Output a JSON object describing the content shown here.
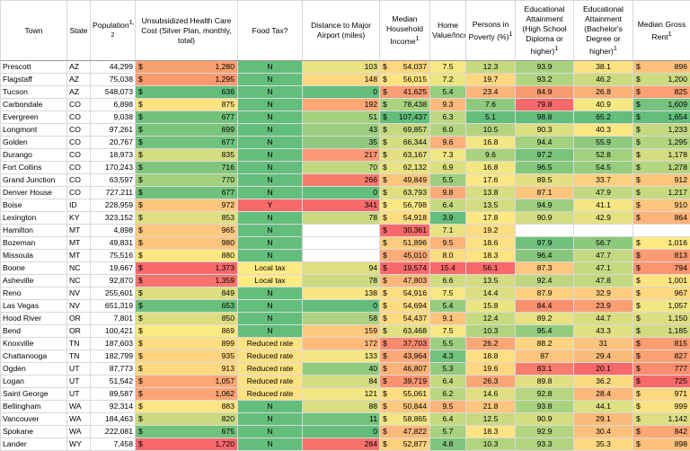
{
  "headers": {
    "town": "Town",
    "state": "State",
    "population": "Population",
    "population_sup": "1, 2",
    "health": "Unsubsidized Health Care Cost (Silver Plan, monthly, total)",
    "foodtax": "Food Tax?",
    "airport": "Distance to Major Airport (miles)",
    "income": "Median Household Income",
    "income_sup": "1",
    "homeval": "Home Value/Income",
    "poverty": "Persons in Poverty (%)",
    "poverty_sup": "1",
    "edu_hs": "Educational Attainment (High School Diploma or higher)",
    "edu_hs_sup": "1",
    "edu_ba": "Educational Attainment (Bachelor's Degree or higher)",
    "edu_ba_sup": "1",
    "rent": "Median Gross Rent",
    "rent_sup": "1"
  },
  "currency_symbol": "$",
  "rows": [
    {
      "town": "Prescott",
      "state": "AZ",
      "pop": "44,299",
      "health": "1,280",
      "health_c": "#f9a06f",
      "food": "N",
      "food_c": "#63be7b",
      "air": "103",
      "air_c": "#e9e282",
      "inc": "54,037",
      "inc_c": "#fed780",
      "hv": "7.5",
      "hv_c": "#f7e883",
      "pov": "12.3",
      "pov_c": "#c7d980",
      "hs": "93.9",
      "hs_c": "#a9d27f",
      "ba": "38.1",
      "ba_c": "#ffe383",
      "rent": "896",
      "rent_c": "#fdc17c"
    },
    {
      "town": "Flagstaff",
      "state": "AZ",
      "pop": "75,038",
      "health": "1,295",
      "health_c": "#f99a6e",
      "food": "N",
      "food_c": "#63be7b",
      "air": "148",
      "air_c": "#fed780",
      "inc": "56,015",
      "inc_c": "#ffe383",
      "hv": "7.2",
      "hv_c": "#ebe582",
      "pov": "19.7",
      "pov_c": "#fed780",
      "hs": "93.2",
      "hs_c": "#b1d47f",
      "ba": "46.2",
      "ba_c": "#cddb80",
      "rent": "1,200",
      "rent_c": "#cddb80"
    },
    {
      "town": "Tucson",
      "state": "AZ",
      "pop": "548,073",
      "health": "636",
      "health_c": "#63be7b",
      "food": "N",
      "food_c": "#63be7b",
      "air": "0",
      "air_c": "#63be7b",
      "inc": "41,625",
      "inc_c": "#fa9e73",
      "hv": "5.4",
      "hv_c": "#98cd7e",
      "pov": "23.4",
      "pov_c": "#fcb67a",
      "hs": "84.9",
      "hs_c": "#f99b70",
      "ba": "26.8",
      "ba_c": "#fab178",
      "rent": "825",
      "rent_c": "#fba072"
    },
    {
      "town": "Carbondale",
      "state": "CO",
      "pop": "6,898",
      "health": "875",
      "health_c": "#ffe383",
      "food": "N",
      "food_c": "#63be7b",
      "air": "192",
      "air_c": "#fca874",
      "inc": "78,438",
      "inc_c": "#aad380",
      "hv": "9.3",
      "hv_c": "#fcbb7b",
      "pov": "7.6",
      "pov_c": "#8fc97d",
      "hs": "79.8",
      "hs_c": "#f8696b",
      "ba": "40.9",
      "ba_c": "#f6e883",
      "rent": "1,609",
      "rent_c": "#75c37c"
    },
    {
      "town": "Evergreen",
      "state": "CO",
      "pop": "9,038",
      "health": "677",
      "health_c": "#71c27c",
      "food": "N",
      "food_c": "#63be7b",
      "air": "51",
      "air_c": "#a3d17f",
      "inc": "107,437",
      "inc_c": "#63be7b",
      "hv": "6.3",
      "hv_c": "#c0d781",
      "pov": "5.1",
      "pov_c": "#63be7b",
      "hs": "98.8",
      "hs_c": "#63be7b",
      "ba": "65.2",
      "ba_c": "#63be7b",
      "rent": "1,654",
      "rent_c": "#63be7b"
    },
    {
      "town": "Longmont",
      "state": "CO",
      "pop": "97,261",
      "health": "699",
      "health_c": "#7ac47c",
      "food": "N",
      "food_c": "#63be7b",
      "air": "43",
      "air_c": "#99ce7e",
      "inc": "69,857",
      "inc_c": "#c6d981",
      "hv": "6.0",
      "hv_c": "#b2d47f",
      "pov": "10.5",
      "pov_c": "#b4d47f",
      "hs": "90.3",
      "hs_c": "#dbde81",
      "ba": "40.3",
      "ba_c": "#fbe883",
      "rent": "1,233",
      "rent_c": "#c4d981"
    },
    {
      "town": "Golden",
      "state": "CO",
      "pop": "20,767",
      "health": "677",
      "health_c": "#71c27c",
      "food": "N",
      "food_c": "#63be7b",
      "air": "35",
      "air_c": "#8fc97d",
      "inc": "66,344",
      "inc_c": "#d6dc81",
      "hv": "9.6",
      "hv_c": "#fcb17a",
      "pov": "16.8",
      "pov_c": "#f3e783",
      "hs": "94.4",
      "hs_c": "#a3d17f",
      "ba": "55.9",
      "ba_c": "#90ca7e",
      "rent": "1,295",
      "rent_c": "#b1d47f"
    },
    {
      "town": "Durango",
      "state": "CO",
      "pop": "18,973",
      "health": "835",
      "health_c": "#d3dd81",
      "food": "N",
      "food_c": "#63be7b",
      "air": "217",
      "air_c": "#fb9874",
      "inc": "63,167",
      "inc_c": "#e4e082",
      "hv": "7.3",
      "hv_c": "#f0e683",
      "pov": "9.6",
      "pov_c": "#aad180",
      "hs": "97.2",
      "hs_c": "#79c47c",
      "ba": "52.8",
      "ba_c": "#a3d17f",
      "rent": "1,178",
      "rent_c": "#d4dc81"
    },
    {
      "town": "Fort Collins",
      "state": "CO",
      "pop": "170,243",
      "health": "716",
      "health_c": "#82c67d",
      "food": "N",
      "food_c": "#63be7b",
      "air": "70",
      "air_c": "#c1d881",
      "inc": "62,132",
      "inc_c": "#e9e282",
      "hv": "6.9",
      "hv_c": "#dde081",
      "pov": "16.8",
      "pov_c": "#f3e783",
      "hs": "96.5",
      "hs_c": "#84c77d",
      "ba": "54.5",
      "ba_c": "#98cd7e",
      "rent": "1,278",
      "rent_c": "#b6d57f"
    },
    {
      "town": "Grand Junction",
      "state": "CO",
      "pop": "63,597",
      "health": "770",
      "health_c": "#a2d17f",
      "food": "N",
      "food_c": "#63be7b",
      "air": "266",
      "air_c": "#f87a6d",
      "inc": "49,849",
      "inc_c": "#fec57d",
      "hv": "5.5",
      "hv_c": "#9ecf7f",
      "pov": "17.6",
      "pov_c": "#fbe783",
      "hs": "89.5",
      "hs_c": "#e4e082",
      "ba": "33.7",
      "ba_c": "#fdd17f",
      "rent": "912",
      "rent_c": "#fdc67d"
    },
    {
      "town": "Denver House",
      "state": "CO",
      "pop": "727,211",
      "health": "677",
      "health_c": "#71c27c",
      "food": "N",
      "food_c": "#63be7b",
      "air": "0",
      "air_c": "#63be7b",
      "inc": "63,793",
      "inc_c": "#e1df82",
      "hv": "9.8",
      "hv_c": "#fbaa78",
      "pov": "13.8",
      "pov_c": "#d7dd81",
      "hs": "87.1",
      "hs_c": "#fcc57d",
      "ba": "47.9",
      "ba_c": "#c2d981",
      "rent": "1,217",
      "rent_c": "#c8da80"
    },
    {
      "town": "Boise",
      "state": "ID",
      "pop": "228,959",
      "health": "972",
      "health_c": "#fec67d",
      "food": "Y",
      "food_c": "#f8696b",
      "air": "341",
      "air_c": "#f8696b",
      "inc": "56,798",
      "inc_c": "#fbe883",
      "hv": "6.4",
      "hv_c": "#c6d981",
      "pov": "13.5",
      "pov_c": "#d4dc81",
      "hs": "94.9",
      "hs_c": "#9bce7e",
      "ba": "41.1",
      "ba_c": "#f4e783",
      "rent": "910",
      "rent_c": "#fdc57d"
    },
    {
      "town": "Lexington",
      "state": "KY",
      "pop": "323,152",
      "health": "853",
      "health_c": "#dfdf82",
      "food": "N",
      "food_c": "#63be7b",
      "air": "78",
      "air_c": "#cbda80",
      "inc": "54,918",
      "inc_c": "#fedd81",
      "hv": "3.9",
      "hv_c": "#63be7b",
      "pov": "17.8",
      "pov_c": "#fde883",
      "hs": "90.9",
      "hs_c": "#d3dd81",
      "ba": "42.9",
      "ba_c": "#e6e182",
      "rent": "864",
      "rent_c": "#fcb37a"
    },
    {
      "town": "Hamilton",
      "state": "MT",
      "pop": "4,898",
      "health": "965",
      "health_c": "#fec87e",
      "food": "N",
      "food_c": "#63be7b",
      "air": "",
      "air_c": "#ffffff",
      "inc": "30,361",
      "inc_c": "#f8696b",
      "hv": "7.1",
      "hv_c": "#e7e382",
      "pov": "19.2",
      "pov_c": "#fedc81",
      "hs": "",
      "hs_c": "#ffffff",
      "ba": "",
      "ba_c": "#ffffff",
      "rent": "",
      "rent_c": "#ffffff"
    },
    {
      "town": "Bozeman",
      "state": "MT",
      "pop": "49,831",
      "health": "980",
      "health_c": "#fec37c",
      "food": "N",
      "food_c": "#63be7b",
      "air": "",
      "air_c": "#ffffff",
      "inc": "51,896",
      "inc_c": "#fecd7f",
      "hv": "9.5",
      "hv_c": "#fcb47a",
      "pov": "18.6",
      "pov_c": "#fee183",
      "hs": "97.9",
      "hs_c": "#6fc17c",
      "ba": "56.7",
      "ba_c": "#8bc97d",
      "rent": "1,016",
      "rent_c": "#fde883"
    },
    {
      "town": "Missoula",
      "state": "MT",
      "pop": "75,516",
      "health": "880",
      "health_c": "#fee683",
      "food": "N",
      "food_c": "#63be7b",
      "air": "",
      "air_c": "#ffffff",
      "inc": "45,010",
      "inc_c": "#fbac78",
      "hv": "8.0",
      "hv_c": "#fcdc81",
      "pov": "18.3",
      "pov_c": "#ffe383",
      "hs": "96.4",
      "hs_c": "#86c77d",
      "ba": "47.7",
      "ba_c": "#c3d981",
      "rent": "813",
      "rent_c": "#fb9b71"
    },
    {
      "town": "Boone",
      "state": "NC",
      "pop": "19,667",
      "health": "1,373",
      "health_c": "#f8696b",
      "food": "Local tax",
      "food_c": "#ffeb84",
      "air": "94",
      "air_c": "#e0df82",
      "inc": "19,574",
      "inc_c": "#f8696b",
      "hv": "15.4",
      "hv_c": "#f8696b",
      "pov": "56.1",
      "pov_c": "#f8696b",
      "hs": "87.3",
      "hs_c": "#fcc77e",
      "ba": "47.1",
      "ba_c": "#c7d980",
      "rent": "794",
      "rent_c": "#fb946f"
    },
    {
      "town": "Asheville",
      "state": "NC",
      "pop": "92,870",
      "health": "1,359",
      "health_c": "#f9726c",
      "food": "Local tax",
      "food_c": "#ffeb84",
      "air": "78",
      "air_c": "#cbda80",
      "inc": "47,803",
      "inc_c": "#fcb97b",
      "hv": "6.6",
      "hv_c": "#d0dc81",
      "pov": "13.5",
      "pov_c": "#d4dc81",
      "hs": "92.4",
      "hs_c": "#bcd780",
      "ba": "47.8",
      "ba_c": "#c2d981",
      "rent": "1,001",
      "rent_c": "#fee483"
    },
    {
      "town": "Reno",
      "state": "NV",
      "pop": "255,601",
      "health": "849",
      "health_c": "#dcde81",
      "food": "N",
      "food_c": "#63be7b",
      "air": "138",
      "air_c": "#f9e583",
      "inc": "54,916",
      "inc_c": "#fedd81",
      "hv": "7.5",
      "hv_c": "#f7e883",
      "pov": "14.4",
      "pov_c": "#ddde81",
      "hs": "87.9",
      "hs_c": "#fdd07f",
      "ba": "32.9",
      "ba_c": "#fdcd7f",
      "rent": "967",
      "rent_c": "#fed780"
    },
    {
      "town": "Las Vegas",
      "state": "NV",
      "pop": "651,319",
      "health": "653",
      "health_c": "#6bc07c",
      "food": "N",
      "food_c": "#63be7b",
      "air": "0",
      "air_c": "#63be7b",
      "inc": "54,694",
      "inc_c": "#fedb81",
      "hv": "5.4",
      "hv_c": "#98cd7e",
      "pov": "15.8",
      "pov_c": "#eae482",
      "hs": "84.4",
      "hs_c": "#f99170",
      "ba": "23.9",
      "ba_c": "#f99f73",
      "rent": "1,057",
      "rent_c": "#f2e683"
    },
    {
      "town": "Hood River",
      "state": "OR",
      "pop": "7,801",
      "health": "850",
      "health_c": "#dcde81",
      "food": "N",
      "food_c": "#63be7b",
      "air": "58",
      "air_c": "#add380",
      "inc": "54,437",
      "inc_c": "#feda81",
      "hv": "9.1",
      "hv_c": "#fdc37d",
      "pov": "12.4",
      "pov_c": "#c8da80",
      "hs": "89.2",
      "hs_c": "#e9e282",
      "ba": "44.7",
      "ba_c": "#d9dd81",
      "rent": "1,150",
      "rent_c": "#dcde81"
    },
    {
      "town": "Bend",
      "state": "OR",
      "pop": "100,421",
      "health": "869",
      "health_c": "#fbe983",
      "food": "N",
      "food_c": "#63be7b",
      "air": "159",
      "air_c": "#fdc97e",
      "inc": "63,468",
      "inc_c": "#e2e082",
      "hv": "7.5",
      "hv_c": "#f7e883",
      "pov": "10.3",
      "pov_c": "#b2d47f",
      "hs": "95.4",
      "hs_c": "#94cc7e",
      "ba": "43.3",
      "ba_c": "#e3e082",
      "rent": "1,185",
      "rent_c": "#d1dc81"
    },
    {
      "town": "Knoxville",
      "state": "TN",
      "pop": "187,603",
      "health": "899",
      "health_c": "#fedd81",
      "food": "Reduced rate",
      "food_c": "#fee282",
      "air": "172",
      "air_c": "#fdba7b",
      "inc": "37,703",
      "inc_c": "#f98a6f",
      "hv": "5.5",
      "hv_c": "#9ecf7f",
      "pov": "26.2",
      "pov_c": "#fba677",
      "hs": "88.2",
      "hs_c": "#fdd480",
      "ba": "31",
      "ba_c": "#fcc47d",
      "rent": "815",
      "rent_c": "#fb9c71"
    },
    {
      "town": "Chattanooga",
      "state": "TN",
      "pop": "182,799",
      "health": "935",
      "health_c": "#fed480",
      "food": "Reduced rate",
      "food_c": "#fee282",
      "air": "133",
      "air_c": "#f5e783",
      "inc": "43,964",
      "inc_c": "#fba776",
      "hv": "4.3",
      "hv_c": "#70c27c",
      "pov": "18.8",
      "pov_c": "#fee082",
      "hs": "87",
      "hs_c": "#fcc47d",
      "ba": "29.4",
      "ba_c": "#fbbc7b",
      "rent": "827",
      "rent_c": "#fba072"
    },
    {
      "town": "Ogden",
      "state": "UT",
      "pop": "87,773",
      "health": "913",
      "health_c": "#fed980",
      "food": "Reduced rate",
      "food_c": "#fee282",
      "air": "40",
      "air_c": "#94cc7e",
      "inc": "46,807",
      "inc_c": "#fbb379",
      "hv": "5.3",
      "hv_c": "#93cb7e",
      "pov": "19.6",
      "pov_c": "#fed780",
      "hs": "83.1",
      "hs_c": "#f97d6d",
      "ba": "20.1",
      "ba_c": "#f8696b",
      "rent": "777",
      "rent_c": "#fa8e6e"
    },
    {
      "town": "Logan",
      "state": "UT",
      "pop": "51,542",
      "health": "1,057",
      "health_c": "#fca775",
      "food": "Reduced rate",
      "food_c": "#fee282",
      "air": "84",
      "air_c": "#d3dd81",
      "inc": "39,719",
      "inc_c": "#fa936f",
      "hv": "6.4",
      "hv_c": "#c6d981",
      "pov": "26.3",
      "pov_c": "#fba677",
      "hs": "89.8",
      "hs_c": "#e1df82",
      "ba": "36.2",
      "ba_c": "#fddc81",
      "rent": "725",
      "rent_c": "#f8696b"
    },
    {
      "town": "Saint George",
      "state": "UT",
      "pop": "89,587",
      "health": "1,062",
      "health_c": "#fca574",
      "food": "Reduced rate",
      "food_c": "#fee282",
      "air": "121",
      "air_c": "#f2e683",
      "inc": "55,061",
      "inc_c": "#fede81",
      "hv": "6.2",
      "hv_c": "#bbd680",
      "pov": "14.6",
      "pov_c": "#dfdf82",
      "hs": "92.8",
      "hs_c": "#b5d57f",
      "ba": "28.4",
      "ba_c": "#fbb87a",
      "rent": "971",
      "rent_c": "#fed880"
    },
    {
      "town": "Bellingham",
      "state": "WA",
      "pop": "92,314",
      "health": "883",
      "health_c": "#fee483",
      "food": "N",
      "food_c": "#63be7b",
      "air": "88",
      "air_c": "#d8dd81",
      "inc": "50,844",
      "inc_c": "#fec97e",
      "hv": "9.5",
      "hv_c": "#fcb47a",
      "pov": "21.8",
      "pov_c": "#fdc77e",
      "hs": "93.8",
      "hs_c": "#aad380",
      "ba": "44.1",
      "ba_c": "#dddf81",
      "rent": "999",
      "rent_c": "#fee383"
    },
    {
      "town": "Vancouver",
      "state": "WA",
      "pop": "184,463",
      "health": "820",
      "health_c": "#c9da80",
      "food": "N",
      "food_c": "#63be7b",
      "air": "11",
      "air_c": "#71c27c",
      "inc": "58,865",
      "inc_c": "#f3e683",
      "hv": "6.4",
      "hv_c": "#c6d981",
      "pov": "12.5",
      "pov_c": "#c9da80",
      "hs": "90.9",
      "hs_c": "#d3dd81",
      "ba": "29.1",
      "ba_c": "#fbbb7b",
      "rent": "1,142",
      "rent_c": "#dedf82"
    },
    {
      "town": "Spokane",
      "state": "WA",
      "pop": "222,081",
      "health": "675",
      "health_c": "#70c27c",
      "food": "N",
      "food_c": "#63be7b",
      "air": "0",
      "air_c": "#63be7b",
      "inc": "47,822",
      "inc_c": "#fcb97b",
      "hv": "5.7",
      "hv_c": "#a6d17f",
      "pov": "18.3",
      "pov_c": "#ffe383",
      "hs": "92.9",
      "hs_c": "#b4d47f",
      "ba": "30.4",
      "ba_c": "#fcc17c",
      "rent": "842",
      "rent_c": "#fca774"
    },
    {
      "town": "Lander",
      "state": "WY",
      "pop": "7,458",
      "health": "1,720",
      "health_c": "#f8696b",
      "food": "N",
      "food_c": "#63be7b",
      "air": "284",
      "air_c": "#f8716c",
      "inc": "52,877",
      "inc_c": "#fed17f",
      "hv": "4.8",
      "hv_c": "#80c57d",
      "pov": "10.3",
      "pov_c": "#b2d47f",
      "hs": "93.3",
      "hs_c": "#b0d47f",
      "ba": "35.3",
      "ba_c": "#fdd880",
      "rent": "898",
      "rent_c": "#fdc17c"
    }
  ]
}
